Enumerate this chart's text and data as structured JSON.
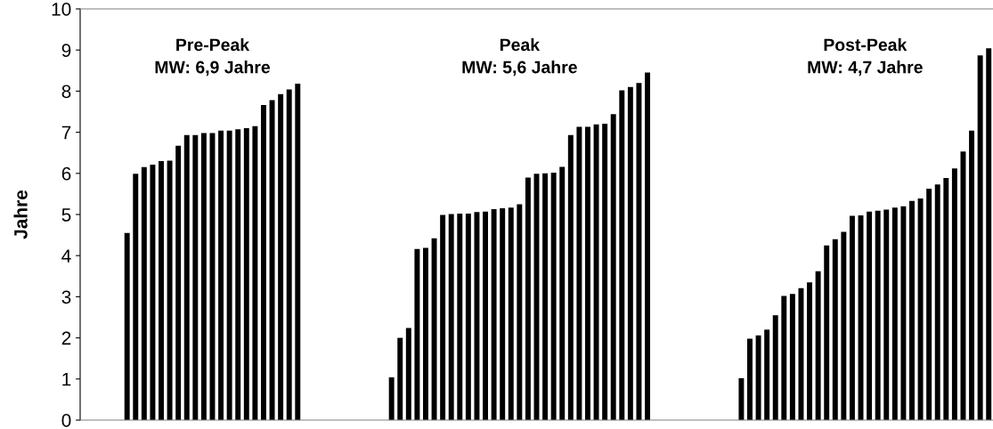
{
  "chart_data": {
    "type": "bar",
    "ylabel": "Jahre",
    "color": "#000000",
    "categories": [
      null,
      null,
      null,
      null,
      null,
      null,
      null,
      null,
      null,
      null,
      null,
      null,
      null,
      null,
      null,
      null,
      null,
      null,
      null,
      null,
      null,
      null,
      null,
      null,
      null,
      null,
      null,
      null,
      null,
      null,
      null,
      null,
      null,
      null,
      null,
      null,
      null,
      null,
      null,
      null,
      null,
      null,
      null,
      null,
      null,
      null,
      null,
      null,
      null,
      null,
      null,
      null,
      null,
      null,
      null,
      null,
      null,
      null,
      null,
      null,
      null,
      null,
      null,
      null,
      null,
      null,
      null,
      null,
      null,
      null,
      null,
      null,
      null,
      null,
      null,
      null,
      null,
      null,
      null,
      null,
      null,
      null,
      null,
      null,
      null,
      null,
      null,
      null,
      null,
      null,
      null,
      null,
      null,
      null,
      null,
      null,
      null,
      null,
      null,
      null,
      null,
      null,
      null,
      null,
      null,
      null,
      null
    ],
    "values": [
      null,
      null,
      null,
      null,
      null,
      4.55,
      5.99,
      6.15,
      6.21,
      6.3,
      6.31,
      6.67,
      6.93,
      6.93,
      6.98,
      6.98,
      7.04,
      7.04,
      7.07,
      7.1,
      7.15,
      7.66,
      7.78,
      7.93,
      8.04,
      8.18,
      null,
      null,
      null,
      null,
      null,
      null,
      null,
      null,
      null,
      null,
      1.04,
      2.0,
      2.24,
      4.16,
      4.19,
      4.42,
      4.99,
      5.01,
      5.02,
      5.02,
      5.06,
      5.07,
      5.13,
      5.15,
      5.17,
      5.25,
      5.9,
      5.99,
      6.0,
      6.02,
      6.16,
      6.93,
      7.13,
      7.13,
      7.19,
      7.21,
      7.44,
      8.02,
      8.1,
      8.2,
      8.45,
      null,
      null,
      null,
      null,
      null,
      null,
      null,
      null,
      null,
      null,
      1.02,
      1.98,
      2.06,
      2.2,
      2.55,
      3.02,
      3.07,
      3.21,
      3.35,
      3.62,
      4.25,
      4.4,
      4.58,
      4.97,
      4.98,
      5.07,
      5.09,
      5.12,
      5.17,
      5.2,
      5.33,
      5.39,
      5.63,
      5.73,
      5.89,
      6.12,
      6.53,
      7.04,
      8.87,
      9.04
    ],
    "ylim": [
      0,
      10
    ],
    "yticks": [
      0,
      1,
      2,
      3,
      4,
      5,
      6,
      7,
      8,
      9,
      10
    ],
    "grid": false,
    "annotations": [
      "Pre-Peak\nMW: 6,9 Jahre",
      "Peak\nMW: 5,6 Jahre",
      "Post-Peak\nMW: 4,7 Jahre"
    ]
  }
}
